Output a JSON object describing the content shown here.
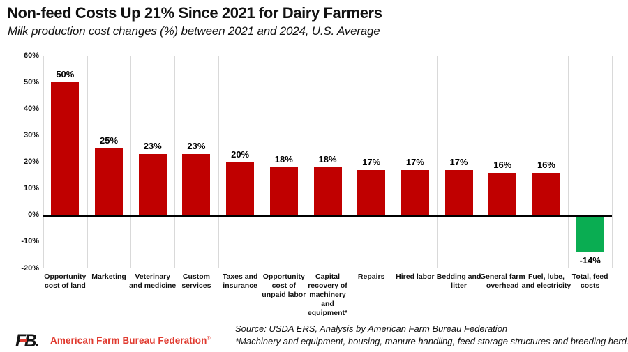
{
  "header": {
    "title": "Non-feed Costs Up 21% Since 2021 for Dairy Farmers",
    "subtitle": "Milk production cost changes (%) between 2021 and 2024, U.S. Average"
  },
  "chart_data": {
    "type": "bar",
    "title": "Non-feed Costs Up 21% Since 2021 for Dairy Farmers",
    "subtitle": "Milk production cost changes (%) between 2021 and 2024, U.S. Average",
    "categories": [
      "Opportunity cost of land",
      "Marketing",
      "Veterinary and medicine",
      "Custom services",
      "Taxes and insurance",
      "Opportunity cost of unpaid labor",
      "Capital recovery of machinery and equipment*",
      "Repairs",
      "Hired labor",
      "Bedding and litter",
      "General farm overhead",
      "Fuel, lube, and electricity",
      "Total, feed costs"
    ],
    "values": [
      50,
      25,
      23,
      23,
      20,
      18,
      18,
      17,
      17,
      17,
      16,
      16,
      -14
    ],
    "data_labels": [
      "50%",
      "25%",
      "23%",
      "23%",
      "20%",
      "18%",
      "18%",
      "17%",
      "17%",
      "17%",
      "16%",
      "16%",
      "-14%"
    ],
    "ylim": [
      -20,
      60
    ],
    "ytick_interval": 10,
    "ytick_labels": [
      "60%",
      "50%",
      "40%",
      "30%",
      "20%",
      "10%",
      "0%",
      "-10%",
      "-20%"
    ],
    "grid": "vertical-only",
    "legend": "none",
    "colors": {
      "positive_bar": "#C00000",
      "negative_bar": "#0AAD52",
      "gridline": "#D9D9D9",
      "zero_line": "#000000"
    }
  },
  "footer": {
    "logo_mark": "FB.",
    "logo_text": "American Farm Bureau Federation",
    "logo_trademark": "®",
    "brand_red": "#E03A2F",
    "source_line1": "Source: USDA ERS, Analysis by American Farm Bureau Federation",
    "source_line2": "*Machinery and equipment, housing, manure handling, feed storage structures and breeding herd."
  }
}
